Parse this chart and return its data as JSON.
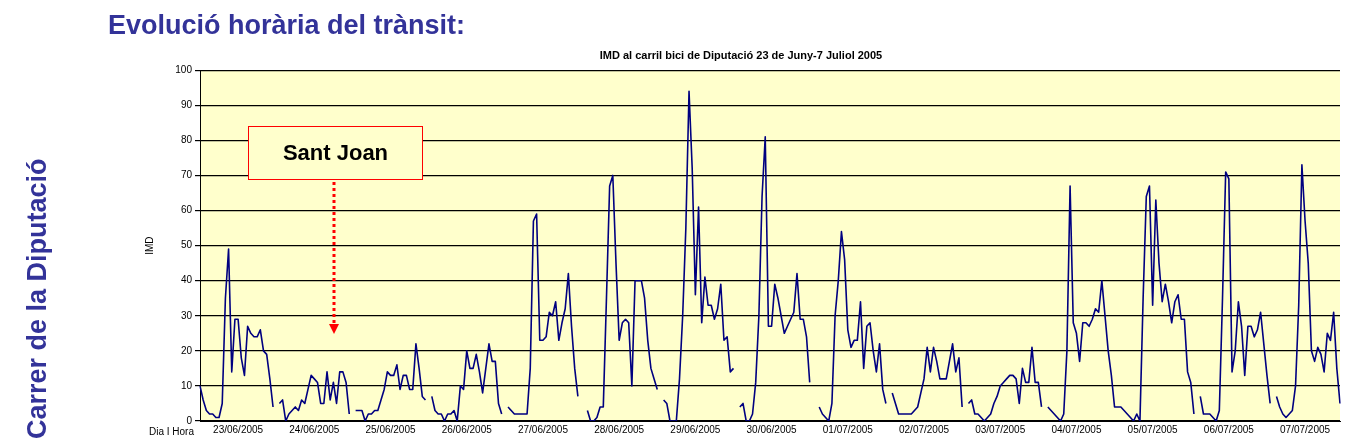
{
  "chart_data": {
    "type": "line",
    "title": "Evolució horària del trànsit:",
    "subtitle": "IMD al carril bici de Diputació 23 de Juny-7 Juliol 2005",
    "xlabel": "Dia I Hora",
    "ylabel": "IMD",
    "annotations": [
      "Sant Joan",
      "Carrer de la Diputació"
    ],
    "ylim": [
      0,
      100
    ],
    "yticks": [
      0,
      10,
      20,
      30,
      40,
      50,
      60,
      70,
      80,
      90,
      100
    ],
    "categories": [
      null,
      null,
      null,
      null,
      null,
      null,
      null,
      null,
      null,
      null,
      null,
      null,
      "23/06/2005",
      null,
      null,
      null,
      null,
      null,
      null,
      null,
      null,
      null,
      null,
      null,
      null,
      null,
      null,
      null,
      null,
      null,
      null,
      null,
      null,
      null,
      null,
      null,
      "24/06/2005",
      null,
      null,
      null,
      null,
      null,
      null,
      null,
      null,
      null,
      null,
      null,
      null,
      null,
      null,
      null,
      null,
      null,
      null,
      null,
      null,
      null,
      null,
      null,
      "25/06/2005",
      null,
      null,
      null,
      null,
      null,
      null,
      null,
      null,
      null,
      null,
      null,
      null,
      null,
      null,
      null,
      null,
      null,
      null,
      null,
      null,
      null,
      null,
      null,
      "26/06/2005",
      null,
      null,
      null,
      null,
      null,
      null,
      null,
      null,
      null,
      null,
      null,
      null,
      null,
      null,
      null,
      null,
      null,
      null,
      null,
      null,
      null,
      null,
      null,
      "27/06/2005",
      null,
      null,
      null,
      null,
      null,
      null,
      null,
      null,
      null,
      null,
      null,
      null,
      null,
      null,
      null,
      null,
      null,
      null,
      null,
      null,
      null,
      null,
      null,
      "28/06/2005",
      null,
      null,
      null,
      null,
      null,
      null,
      null,
      null,
      null,
      null,
      null,
      null,
      null,
      null,
      null,
      null,
      null,
      null,
      null,
      null,
      null,
      null,
      null,
      "29/06/2005",
      null,
      null,
      null,
      null,
      null,
      null,
      null,
      null,
      null,
      null,
      null,
      null,
      null,
      null,
      null,
      null,
      null,
      null,
      null,
      null,
      null,
      null,
      null,
      "30/06/2005",
      null,
      null,
      null,
      null,
      null,
      null,
      null,
      null,
      null,
      null,
      null,
      null,
      null,
      null,
      null,
      null,
      null,
      null,
      null,
      null,
      null,
      null,
      null,
      "01/07/2005",
      null,
      null,
      null,
      null,
      null,
      null,
      null,
      null,
      null,
      null,
      null,
      null,
      null,
      null,
      null,
      null,
      null,
      null,
      null,
      null,
      null,
      null,
      null,
      "02/07/2005",
      null,
      null,
      null,
      null,
      null,
      null,
      null,
      null,
      null,
      null,
      null,
      null,
      null,
      null,
      null,
      null,
      null,
      null,
      null,
      null,
      null,
      null,
      null,
      "03/07/2005",
      null,
      null,
      null,
      null,
      null,
      null,
      null,
      null,
      null,
      null,
      null,
      null,
      null,
      null,
      null,
      null,
      null,
      null,
      null,
      null,
      null,
      null,
      null,
      "04/07/2005",
      null,
      null,
      null,
      null,
      null,
      null,
      null,
      null,
      null,
      null,
      null,
      null,
      null,
      null,
      null,
      null,
      null,
      null,
      null,
      null,
      null,
      null,
      null,
      "05/07/2005",
      null,
      null,
      null,
      null,
      null,
      null,
      null,
      null,
      null,
      null,
      null,
      null,
      null,
      null,
      null,
      null,
      null,
      null,
      null,
      null,
      null,
      null,
      null,
      "06/07/2005",
      null,
      null,
      null,
      null,
      null,
      null,
      null,
      null,
      null,
      null,
      null,
      null,
      null,
      null,
      null,
      null,
      null,
      null,
      null,
      null,
      null,
      null,
      null,
      "07/07/2005",
      null,
      null,
      null,
      null,
      null,
      null,
      null,
      null,
      null,
      null,
      null
    ],
    "grid": "y",
    "marker": "none",
    "line_style": "solid",
    "series": [
      {
        "color": "#000080",
        "values": [
          10,
          6,
          3,
          2,
          2,
          1,
          1,
          5,
          35,
          49,
          14,
          29,
          29,
          18,
          13,
          27,
          25,
          24,
          24,
          26,
          20,
          19,
          12,
          4,
          null,
          5,
          6,
          0,
          2,
          3,
          4,
          3,
          6,
          5,
          9,
          13,
          12,
          11,
          5,
          5,
          14,
          6,
          11,
          5,
          14,
          14,
          11,
          2,
          null,
          3,
          3,
          3,
          0,
          2,
          2,
          3,
          3,
          6,
          9,
          14,
          13,
          13,
          16,
          9,
          13,
          13,
          9,
          9,
          22,
          15,
          7,
          6,
          null,
          7,
          3,
          2,
          2,
          0,
          2,
          2,
          3,
          0,
          10,
          9,
          20,
          15,
          15,
          19,
          14,
          8,
          15,
          22,
          17,
          17,
          5,
          2,
          null,
          4,
          3,
          2,
          2,
          2,
          2,
          2,
          15,
          57,
          59,
          23,
          23,
          24,
          31,
          30,
          34,
          23,
          28,
          32,
          42,
          27,
          15,
          7,
          null,
          null,
          3,
          0,
          0,
          1,
          4,
          4,
          35,
          67,
          70,
          45,
          23,
          28,
          29,
          28,
          10,
          40,
          40,
          40,
          35,
          23,
          15,
          12,
          9,
          null,
          6,
          5,
          0,
          0,
          0,
          12,
          30,
          55,
          94,
          72,
          36,
          61,
          28,
          41,
          33,
          33,
          29,
          32,
          39,
          23,
          24,
          14,
          15,
          null,
          4,
          5,
          0,
          0,
          2,
          11,
          30,
          64,
          81,
          27,
          27,
          39,
          35,
          30,
          25,
          27,
          29,
          31,
          42,
          29,
          29,
          24,
          11,
          null,
          null,
          4,
          2,
          1,
          0,
          5,
          30,
          40,
          54,
          46,
          26,
          21,
          23,
          23,
          34,
          15,
          27,
          28,
          20,
          14,
          22,
          9,
          5,
          null,
          8,
          5,
          2,
          2,
          2,
          2,
          2,
          3,
          4,
          8,
          12,
          21,
          14,
          21,
          17,
          12,
          12,
          12,
          17,
          22,
          14,
          18,
          4,
          null,
          5,
          6,
          2,
          2,
          1,
          0,
          1,
          2,
          5,
          7,
          10,
          11,
          12,
          13,
          13,
          12,
          5,
          15,
          11,
          11,
          21,
          11,
          11,
          4,
          null,
          4,
          3,
          2,
          1,
          0,
          2,
          20,
          67,
          28,
          25,
          17,
          28,
          28,
          27,
          29,
          32,
          31,
          40,
          30,
          20,
          13,
          4,
          4,
          4,
          3,
          2,
          1,
          0,
          2,
          0,
          35,
          64,
          67,
          33,
          63,
          45,
          34,
          39,
          34,
          28,
          34,
          36,
          29,
          29,
          14,
          11,
          2,
          null,
          7,
          2,
          2,
          2,
          1,
          0,
          3,
          35,
          71,
          69,
          14,
          20,
          34,
          27,
          13,
          27,
          27,
          24,
          26,
          31,
          22,
          13,
          5,
          null,
          7,
          4,
          2,
          1,
          2,
          3,
          10,
          33,
          73,
          57,
          45,
          20,
          17,
          21,
          19,
          14,
          25,
          23,
          31,
          15,
          5
        ]
      }
    ]
  }
}
